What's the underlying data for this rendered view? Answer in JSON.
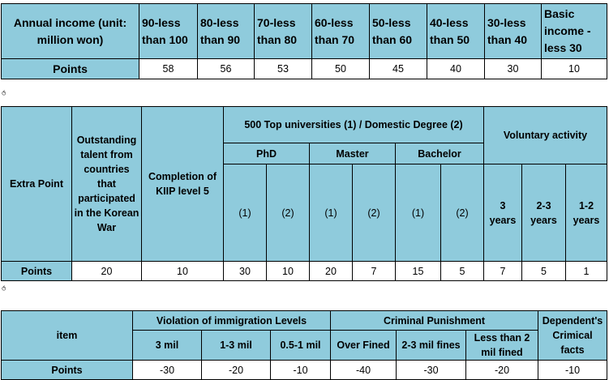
{
  "income_table": {
    "header": "Annual income (unit: million won)",
    "ranges": [
      "90-less than 100",
      "80-less than 90",
      "70-less than 80",
      "60-less than 70",
      "50-less than 60",
      "40-less than 50",
      "30-less than 40",
      "Basic income - less 30"
    ],
    "points_label": "Points",
    "points": [
      "58",
      "56",
      "53",
      "50",
      "45",
      "40",
      "30",
      "10"
    ]
  },
  "extra_table": {
    "row_label": "Extra Point",
    "korean_war": "Outstanding talent from countries that participated in the Korean War",
    "kiip": "Completion of KIIP level 5",
    "universities": "500 Top universities (1) / Domestic Degree (2)",
    "voluntary": "Voluntary activity",
    "phd": "PhD",
    "master": "Master",
    "bachelor": "Bachelor",
    "sub": [
      "(1)",
      "(2)",
      "(1)",
      "(2)",
      "(1)",
      "(2)"
    ],
    "years": [
      "3 years",
      "2-3 years",
      "1-2 years"
    ],
    "points_label": "Points",
    "points": [
      "20",
      "10",
      "30",
      "10",
      "20",
      "7",
      "15",
      "5",
      "7",
      "5",
      "1"
    ]
  },
  "violation_table": {
    "item_label": "item",
    "immigration": "Violation of immigration Levels",
    "criminal": "Criminal Punishment",
    "dependent": "Dependent's Crimical facts",
    "immigration_levels": [
      "3 mil",
      "1-3 mil",
      "0.5-1 mil"
    ],
    "criminal_levels": [
      "Over Fined",
      "2-3 mil fines",
      "Less than 2 mil fined"
    ],
    "points_label": "Points",
    "points": [
      "-30",
      "-20",
      "-10",
      "-40",
      "-30",
      "-20",
      "-10"
    ]
  },
  "separator_mark": "⥀",
  "colors": {
    "header_bg": "#8fcbdc",
    "cell_bg": "#ffffff",
    "border": "#000000"
  }
}
